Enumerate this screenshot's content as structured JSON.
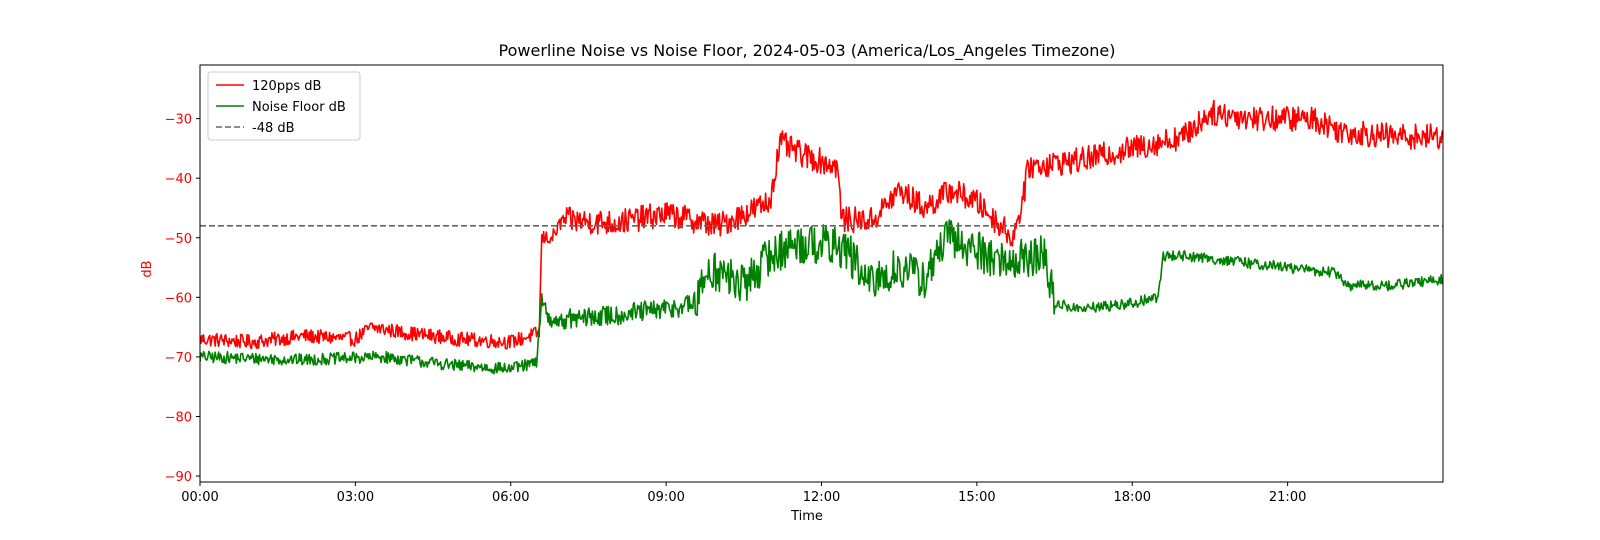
{
  "chart_data": {
    "type": "line",
    "title": "Powerline Noise vs Noise Floor, 2024-05-03 (America/Los_Angeles Timezone)",
    "xlabel": "Time",
    "ylabel": "dB",
    "xlim_hours": [
      0,
      24
    ],
    "ylim": [
      -91,
      -21
    ],
    "x_ticks": [
      {
        "hour": 0,
        "label": "00:00"
      },
      {
        "hour": 3,
        "label": "03:00"
      },
      {
        "hour": 6,
        "label": "06:00"
      },
      {
        "hour": 9,
        "label": "09:00"
      },
      {
        "hour": 12,
        "label": "12:00"
      },
      {
        "hour": 15,
        "label": "15:00"
      },
      {
        "hour": 18,
        "label": "18:00"
      },
      {
        "hour": 21,
        "label": "21:00"
      }
    ],
    "y_ticks": [
      -90,
      -80,
      -70,
      -60,
      -50,
      -40,
      -30
    ],
    "y_tick_color": "#ff0000",
    "ylabel_color": "#ff0000",
    "grid": false,
    "legend_position": "upper-left",
    "series": [
      {
        "name": "120pps dB",
        "color": "#ff0000",
        "style": "solid",
        "noise": 1.2,
        "points": [
          [
            0.0,
            -67.0
          ],
          [
            1.0,
            -67.5
          ],
          [
            2.0,
            -66.5
          ],
          [
            3.0,
            -67.0
          ],
          [
            3.3,
            -65.0
          ],
          [
            4.0,
            -66.0
          ],
          [
            5.0,
            -67.0
          ],
          [
            6.0,
            -67.5
          ],
          [
            6.55,
            -66.0
          ],
          [
            6.6,
            -50.0
          ],
          [
            6.8,
            -50.0
          ],
          [
            7.0,
            -47.0
          ],
          [
            8.0,
            -47.5
          ],
          [
            9.0,
            -46.0
          ],
          [
            10.0,
            -48.0
          ],
          [
            10.5,
            -46.0
          ],
          [
            11.0,
            -44.0
          ],
          [
            11.2,
            -34.0
          ],
          [
            11.6,
            -36.0
          ],
          [
            12.3,
            -38.0
          ],
          [
            12.4,
            -47.0
          ],
          [
            13.0,
            -47.0
          ],
          [
            13.5,
            -42.0
          ],
          [
            14.0,
            -45.0
          ],
          [
            14.5,
            -42.0
          ],
          [
            15.0,
            -44.0
          ],
          [
            15.7,
            -50.0
          ],
          [
            15.9,
            -43.0
          ],
          [
            16.0,
            -38.0
          ],
          [
            17.0,
            -37.0
          ],
          [
            18.0,
            -35.0
          ],
          [
            19.0,
            -33.0
          ],
          [
            19.5,
            -29.0
          ],
          [
            20.5,
            -30.0
          ],
          [
            21.5,
            -30.0
          ],
          [
            22.0,
            -32.0
          ],
          [
            23.0,
            -33.0
          ],
          [
            24.0,
            -33.0
          ]
        ]
      },
      {
        "name": "Noise Floor dB",
        "color": "#008000",
        "style": "solid",
        "noise": 1.0,
        "points": [
          [
            0.0,
            -70.0
          ],
          [
            2.0,
            -70.5
          ],
          [
            3.5,
            -70.0
          ],
          [
            5.0,
            -71.5
          ],
          [
            6.0,
            -72.0
          ],
          [
            6.5,
            -71.0
          ],
          [
            6.6,
            -60.0
          ],
          [
            6.75,
            -64.0
          ],
          [
            8.0,
            -63.0
          ],
          [
            9.0,
            -62.0
          ],
          [
            9.6,
            -61.0
          ],
          [
            9.8,
            -55.0
          ],
          [
            10.5,
            -58.0
          ],
          [
            11.0,
            -53.0
          ],
          [
            11.5,
            -51.0
          ],
          [
            12.0,
            -51.0
          ],
          [
            12.5,
            -52.0
          ],
          [
            12.9,
            -58.0
          ],
          [
            13.5,
            -55.0
          ],
          [
            14.0,
            -57.0
          ],
          [
            14.4,
            -50.0
          ],
          [
            15.0,
            -52.0
          ],
          [
            15.5,
            -54.0
          ],
          [
            16.3,
            -53.0
          ],
          [
            16.5,
            -61.0
          ],
          [
            17.0,
            -62.0
          ],
          [
            18.0,
            -61.0
          ],
          [
            18.5,
            -60.0
          ],
          [
            18.6,
            -53.0
          ],
          [
            19.0,
            -53.0
          ],
          [
            20.0,
            -54.0
          ],
          [
            21.0,
            -55.0
          ],
          [
            22.0,
            -56.0
          ],
          [
            22.1,
            -58.0
          ],
          [
            23.0,
            -58.0
          ],
          [
            24.0,
            -57.0
          ]
        ]
      },
      {
        "name": "-48 dB",
        "color": "#666666",
        "style": "dashed",
        "noise": 0,
        "points": [
          [
            0.0,
            -48.0
          ],
          [
            24.0,
            -48.0
          ]
        ]
      }
    ]
  }
}
